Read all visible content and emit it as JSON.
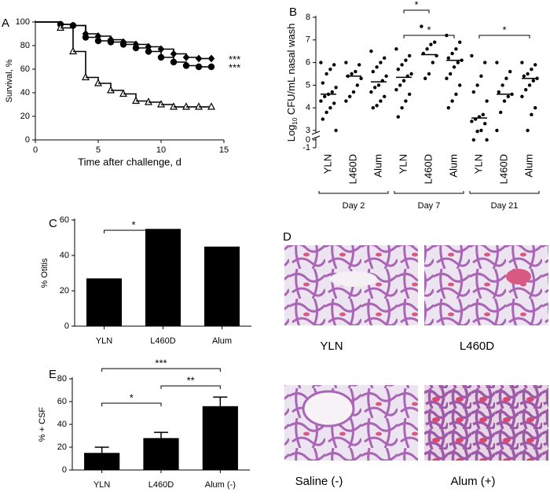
{
  "chart_data": [
    {
      "type": "step",
      "panel": "A",
      "xlabel": "Time after challenge, d",
      "ylabel": "Survival, %",
      "x": [
        0,
        2,
        3,
        4,
        5,
        6,
        7,
        8,
        9,
        10,
        11,
        12,
        13,
        14
      ],
      "xlim": [
        0,
        15
      ],
      "xticks": [
        0,
        5,
        10,
        15
      ],
      "ylim": [
        0,
        100
      ],
      "yticks": [
        0,
        20,
        40,
        60,
        80,
        100
      ],
      "series": [
        {
          "marker": "diamond",
          "color": "#000000",
          "values": [
            100,
            98,
            97,
            90,
            88,
            85,
            83,
            81,
            79,
            77,
            73,
            70,
            69,
            69
          ]
        },
        {
          "marker": "circle",
          "color": "#000000",
          "values": [
            100,
            98,
            97,
            87,
            84,
            83,
            81,
            78,
            75,
            70,
            66,
            63,
            62,
            62
          ]
        },
        {
          "marker": "triangle",
          "color": "#000000",
          "values": [
            100,
            95,
            75,
            53,
            48,
            42,
            39,
            33,
            32,
            30,
            28,
            28,
            28,
            28
          ]
        }
      ],
      "annotations": [
        "***",
        "***"
      ]
    },
    {
      "type": "dot",
      "panel": "B",
      "ylabel": {
        "prefix": "Log",
        "sub": "10",
        "text": " CFU/mL nasal wash"
      },
      "categories": [
        "YLN",
        "L460D",
        "Alum",
        "YLN",
        "L460D",
        "Alum",
        "YLN",
        "L460D",
        "Alum"
      ],
      "ylim": [
        -1,
        8
      ],
      "yticks": [
        -1,
        0,
        3,
        4,
        5,
        6,
        7,
        8
      ],
      "axis_break": [
        0,
        3
      ],
      "points": [
        [
          6.0,
          5.9,
          5.7,
          5.5,
          5.1,
          4.9,
          4.7,
          4.6,
          4.5,
          4.3,
          4.2,
          4.0,
          3.8,
          3.5,
          3.0
        ],
        [
          6.0,
          5.9,
          5.6,
          5.5,
          5.4,
          5.3,
          5.0,
          4.7,
          4.5,
          4.3
        ],
        [
          6.5,
          6.2,
          6.0,
          5.8,
          5.6,
          5.4,
          5.2,
          5.0,
          4.9,
          4.7,
          4.5,
          4.3,
          4.1,
          4.0
        ],
        [
          6.6,
          6.3,
          6.1,
          5.9,
          5.7,
          5.5,
          5.4,
          5.2,
          5.0,
          4.8,
          4.6,
          4.3,
          4.0,
          3.6
        ],
        [
          7.6,
          6.9,
          6.8,
          6.6,
          6.4,
          6.3,
          6.0,
          5.5,
          5.3
        ],
        [
          7.2,
          6.9,
          6.6,
          6.4,
          6.2,
          6.1,
          6.0,
          5.8,
          5.5,
          5.3,
          5.0,
          4.6,
          4.3,
          4.0
        ],
        [
          6.3,
          6.0,
          5.4,
          5.0,
          4.7,
          4.3,
          3.7,
          3.6,
          3.5,
          3.4,
          3.3,
          3.0,
          2.7,
          0,
          0
        ],
        [
          6.0,
          5.6,
          5.3,
          5.0,
          4.7,
          4.6,
          4.5,
          4.3,
          3.8,
          3.0
        ],
        [
          6.0,
          5.9,
          5.7,
          5.5,
          5.4,
          5.3,
          5.2,
          5.0,
          4.8,
          4.5,
          4.0,
          3.7,
          3.0
        ]
      ],
      "medians": [
        4.6,
        5.4,
        5.15,
        5.35,
        6.35,
        6.1,
        3.55,
        4.6,
        5.3
      ],
      "groups": [
        {
          "label": "Day 2",
          "from": 0,
          "to": 2
        },
        {
          "label": "Day 7",
          "from": 3,
          "to": 5
        },
        {
          "label": "Day 21",
          "from": 6,
          "to": 8
        }
      ],
      "brackets": [
        {
          "between": [
            6,
            8
          ],
          "label": "*"
        },
        {
          "between": [
            3,
            5
          ],
          "label": "*"
        },
        {
          "between": [
            3,
            4
          ],
          "label": "*"
        }
      ]
    },
    {
      "type": "bar",
      "panel": "C",
      "ylabel": "% Otitis",
      "categories": [
        "YLN",
        "L460D",
        "Alum"
      ],
      "values": [
        27,
        55,
        45
      ],
      "color": "#000000",
      "ylim": [
        0,
        60
      ],
      "yticks": [
        0,
        20,
        40,
        60
      ],
      "brackets": [
        {
          "between": [
            0,
            1
          ],
          "label": "*"
        }
      ]
    },
    {
      "type": "bar",
      "panel": "E",
      "ylabel": "% + CSF",
      "categories": [
        "YLN",
        "L460D",
        "Alum (-)"
      ],
      "values": [
        15,
        28,
        56
      ],
      "errors": [
        5,
        5,
        8
      ],
      "color": "#000000",
      "ylim": [
        0,
        80
      ],
      "yticks": [
        0,
        20,
        40,
        60,
        80
      ],
      "brackets": [
        {
          "between": [
            0,
            1
          ],
          "label": "*"
        },
        {
          "between": [
            1,
            2
          ],
          "label": "**"
        },
        {
          "between": [
            0,
            2
          ],
          "label": "***"
        }
      ]
    }
  ],
  "figure_d": {
    "panel": "D",
    "labels": [
      "YLN",
      "L460D",
      "Saline (-)",
      "Alum (+)"
    ]
  }
}
